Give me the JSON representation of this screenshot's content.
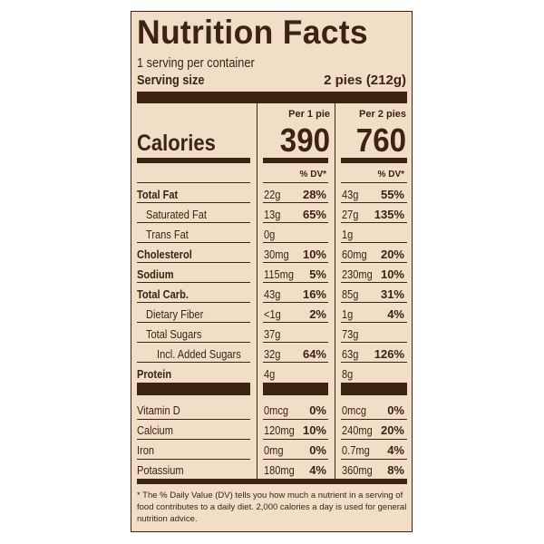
{
  "label": {
    "title": "Nutrition Facts",
    "servings_per_container": "1 serving per container",
    "serving_size_label": "Serving size",
    "serving_size_value": "2 pies (212g)",
    "col1_header": "Per 1 pie",
    "col2_header": "Per 2 pies",
    "calories_label": "Calories",
    "calories_col1": "390",
    "calories_col2": "760",
    "dv_header": "% DV*",
    "nutrients": [
      {
        "name": "Total Fat",
        "a1": "22g",
        "d1": "28%",
        "a2": "43g",
        "d2": "55%"
      },
      {
        "name": "Saturated Fat",
        "a1": "13g",
        "d1": "65%",
        "a2": "27g",
        "d2": "135%"
      },
      {
        "name": "Trans Fat",
        "a1": "0g",
        "d1": "",
        "a2": "1g",
        "d2": ""
      },
      {
        "name": "Cholesterol",
        "a1": "30mg",
        "d1": "10%",
        "a2": "60mg",
        "d2": "20%"
      },
      {
        "name": "Sodium",
        "a1": "115mg",
        "d1": "5%",
        "a2": "230mg",
        "d2": "10%"
      },
      {
        "name": "Total Carb.",
        "a1": "43g",
        "d1": "16%",
        "a2": "85g",
        "d2": "31%"
      },
      {
        "name": "Dietary Fiber",
        "a1": "<1g",
        "d1": "2%",
        "a2": "1g",
        "d2": "4%"
      },
      {
        "name": "Total Sugars",
        "a1": "37g",
        "d1": "",
        "a2": "73g",
        "d2": ""
      },
      {
        "name": "Incl. Added Sugars",
        "a1": "32g",
        "d1": "64%",
        "a2": "63g",
        "d2": "126%"
      },
      {
        "name": "Protein",
        "a1": "4g",
        "d1": "",
        "a2": "8g",
        "d2": ""
      }
    ],
    "vitamins": [
      {
        "name": "Vitamin D",
        "a1": "0mcg",
        "d1": "0%",
        "a2": "0mcg",
        "d2": "0%"
      },
      {
        "name": "Calcium",
        "a1": "120mg",
        "d1": "10%",
        "a2": "240mg",
        "d2": "20%"
      },
      {
        "name": "Iron",
        "a1": "0mg",
        "d1": "0%",
        "a2": "0.7mg",
        "d2": "4%"
      },
      {
        "name": "Potassium",
        "a1": "180mg",
        "d1": "4%",
        "a2": "360mg",
        "d2": "8%"
      }
    ],
    "footnote": "* The % Daily Value (DV) tells you how much a nutrient in a serving of food contributes to a daily diet. 2,000 calories a day is used for general nutrition advice."
  },
  "colors": {
    "ink": "#3c2314",
    "background": "#f2ddc7"
  }
}
